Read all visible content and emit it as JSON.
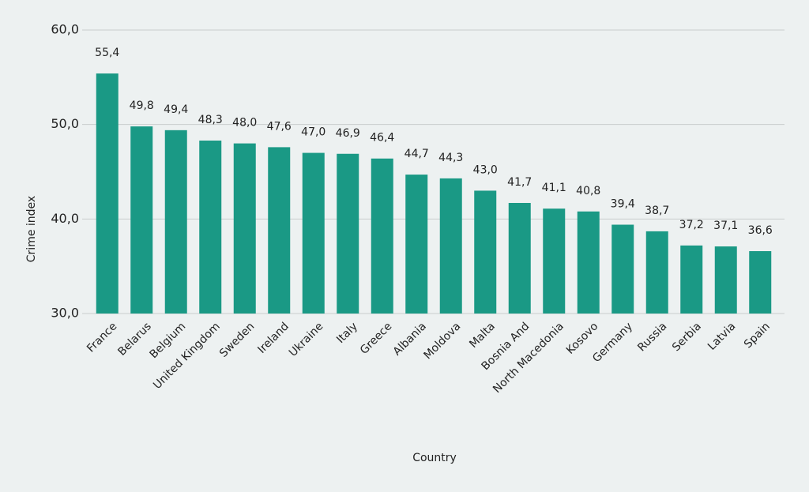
{
  "chart_data": {
    "type": "bar",
    "x_label": "Country",
    "y_label": "Crime index",
    "categories": [
      "France",
      "Belarus",
      "Belgium",
      "United Kingdom",
      "Sweden",
      "Ireland",
      "Ukraine",
      "Italy",
      "Greece",
      "Albania",
      "Moldova",
      "Malta",
      "Bosnia And",
      "North Macedonia",
      "Kosovo",
      "Germany",
      "Russia",
      "Serbia",
      "Latvia",
      "Spain"
    ],
    "values": [
      55.4,
      49.8,
      49.4,
      48.3,
      48.0,
      47.6,
      47.0,
      46.9,
      46.4,
      44.7,
      44.3,
      43.0,
      41.7,
      41.1,
      40.8,
      39.4,
      38.7,
      37.2,
      37.1,
      36.6
    ],
    "value_labels": [
      "55,4",
      "49,8",
      "49,4",
      "48,3",
      "48,0",
      "47,6",
      "47,0",
      "46,9",
      "46,4",
      "44,7",
      "44,3",
      "43,0",
      "41,7",
      "41,1",
      "40,8",
      "39,4",
      "38,7",
      "37,2",
      "37,1",
      "36,6"
    ],
    "color": "#1a9985",
    "ylim": [
      30,
      60
    ],
    "yticks": [
      {
        "value": 30,
        "label": "30,0"
      },
      {
        "value": 40,
        "label": "40,0"
      },
      {
        "value": 50,
        "label": "50,0"
      },
      {
        "value": 60,
        "label": "60,0"
      }
    ],
    "grid": true
  }
}
